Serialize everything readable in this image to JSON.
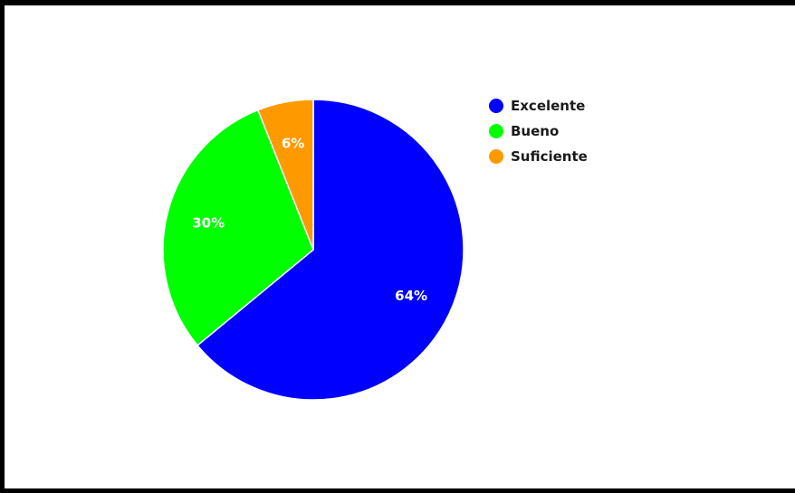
{
  "chart_data": {
    "type": "pie",
    "title": "",
    "start_angle_deg": 0,
    "direction": "clockwise",
    "slices": [
      {
        "label": "Excelente",
        "value": 64,
        "display": "64%",
        "color": "#0000ff"
      },
      {
        "label": "Bueno",
        "value": 30,
        "display": "30%",
        "color": "#00ff00"
      },
      {
        "label": "Suficiente",
        "value": 6,
        "display": "6%",
        "color": "#ff9900"
      }
    ],
    "legend": {
      "placement": "right",
      "entries": [
        "Excelente",
        "Bueno",
        "Suficiente"
      ]
    },
    "slice_border_color": "#ffffff"
  }
}
